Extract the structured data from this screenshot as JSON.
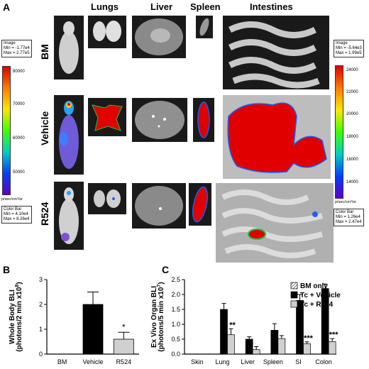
{
  "panels": {
    "a": "A",
    "b": "B",
    "c": "C"
  },
  "columns": {
    "lungs": "Lungs",
    "liver": "Liver",
    "spleen": "Spleen",
    "intestines": "Intestines"
  },
  "rows": {
    "bm": "BM",
    "vehicle": "Vehicle",
    "r524": "R524"
  },
  "left_scale": {
    "image_box": [
      "Image",
      "Min = -1.77e4",
      "Max = 2.77e5"
    ],
    "ticks": [
      "80000",
      "70000",
      "60000",
      "50000"
    ],
    "unit": "p/sec/cm²/sr",
    "colorbar_box": [
      "Color Bar",
      "Min = 4.10e4",
      "Max = 8.26e4"
    ]
  },
  "right_scale": {
    "image_box": [
      "Image",
      "Min = -5.64e3",
      "Max = 1.99e5"
    ],
    "ticks": [
      "24000",
      "22000",
      "20000",
      "18000",
      "16000",
      "14000"
    ],
    "unit": "p/sec/cm²/sr",
    "colorbar_box": [
      "Color Bar",
      "Min = 1.26e4",
      "Max = 2.47e4"
    ]
  },
  "chart_data": [
    {
      "type": "bar",
      "ylabel_line1": "Whole Body BLI",
      "ylabel_line2": "(photons/2 min x10",
      "ylabel_sup": "8",
      "categories": [
        "BM",
        "Vehicle",
        "R524"
      ],
      "values": [
        0,
        2.0,
        0.6
      ],
      "errors": [
        0,
        0.5,
        0.28
      ],
      "colors": [
        "#000000",
        "#000000",
        "#d0d0d0"
      ],
      "significance": [
        "",
        "",
        "*"
      ],
      "ylim": [
        0,
        3
      ],
      "yticks": [
        "0",
        "1",
        "2",
        "3"
      ]
    },
    {
      "type": "bar",
      "ylabel_line1": "Ex Vivo Organ BLI",
      "ylabel_line2": "(photons/5 min x10",
      "ylabel_sup": "7",
      "categories": [
        "Skin",
        "Lung",
        "Liver",
        "Spleen",
        "SI",
        "Colon"
      ],
      "series": [
        {
          "name": "BM only",
          "values": [
            0,
            0,
            0,
            0,
            0,
            0
          ]
        },
        {
          "name": "Tc + Vehicle",
          "values": [
            0,
            1.5,
            0.5,
            0.8,
            1.8,
            2.2
          ],
          "errors": [
            0,
            0.2,
            0.08,
            0.22,
            0.2,
            0.15
          ]
        },
        {
          "name": "Tc + R524",
          "values": [
            0,
            0.65,
            0.15,
            0.52,
            0.35,
            0.42
          ],
          "errors": [
            0,
            0.2,
            0.1,
            0.1,
            0.06,
            0.1
          ]
        }
      ],
      "significance": [
        "",
        "**",
        "",
        "",
        "***",
        "***"
      ],
      "ylim": [
        0,
        2.5
      ],
      "yticks": [
        "0.0",
        "0.5",
        "1.0",
        "1.5",
        "2.0",
        "2.5"
      ]
    }
  ]
}
